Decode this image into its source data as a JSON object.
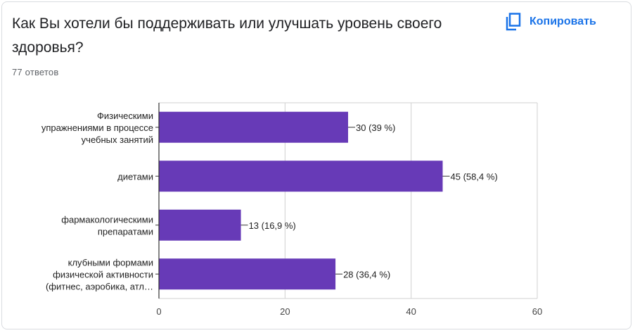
{
  "header": {
    "question": "Как Вы хотели бы поддерживать или улучшать уровень своего здоровья?",
    "response_count": "77 ответов",
    "copy_label": "Копировать",
    "copy_icon": "copy-icon"
  },
  "colors": {
    "bar": "#673ab7",
    "accent": "#1a73e8"
  },
  "chart_data": {
    "type": "bar",
    "orientation": "horizontal",
    "categories": [
      [
        "Физическими",
        "упражнениями в процессе",
        "учебных занятий"
      ],
      [
        "диетами"
      ],
      [
        "фармакологическими",
        "препаратами"
      ],
      [
        "клубными формами",
        "физической активности",
        "(фитнес, аэробика, атл…"
      ]
    ],
    "values": [
      30,
      45,
      13,
      28
    ],
    "data_labels": [
      "30 (39 %)",
      "45 (58,4 %)",
      "13 (16,9 %)",
      "28 (36,4 %)"
    ],
    "xlim": [
      0,
      60
    ],
    "xticks": [
      0,
      20,
      40,
      60
    ],
    "grid": true,
    "legend": "none"
  }
}
